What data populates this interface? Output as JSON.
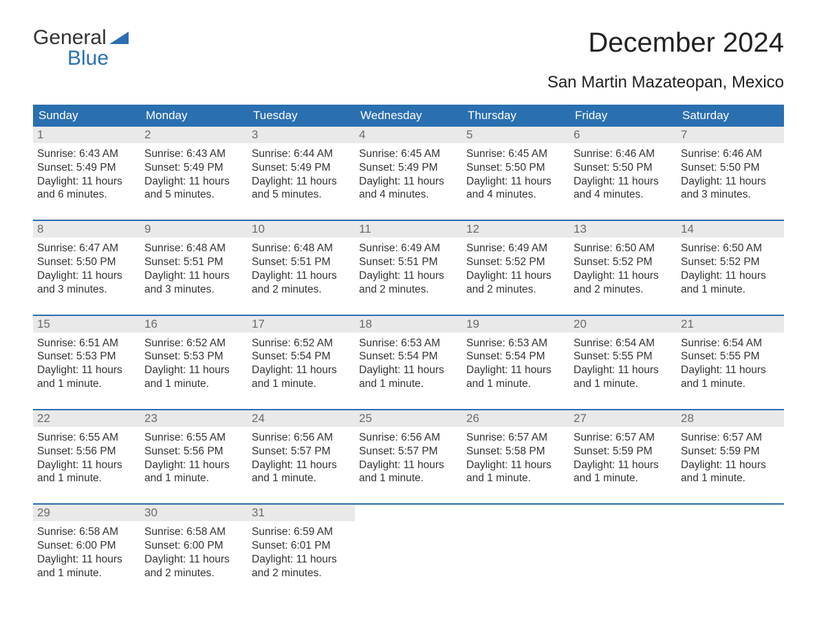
{
  "logo": {
    "word1": "General",
    "word2": "Blue",
    "triangle_color": "#2a6fb0"
  },
  "title": "December 2024",
  "location": "San Martin Mazateopan, Mexico",
  "colors": {
    "header_bg": "#2a6fb0",
    "header_text": "#ffffff",
    "daynum_bg": "#e9e9e9",
    "daynum_text": "#6a6a6a",
    "body_text": "#333333",
    "week_divider": "#2a6fb0",
    "page_bg": "#ffffff"
  },
  "typography": {
    "title_fontsize": 40,
    "location_fontsize": 24,
    "dayheader_fontsize": 17,
    "daynum_fontsize": 17,
    "body_fontsize": 15.5,
    "logo_fontsize": 30
  },
  "day_headers": [
    "Sunday",
    "Monday",
    "Tuesday",
    "Wednesday",
    "Thursday",
    "Friday",
    "Saturday"
  ],
  "weeks": [
    [
      {
        "n": "1",
        "sunrise": "Sunrise: 6:43 AM",
        "sunset": "Sunset: 5:49 PM",
        "daylight": "Daylight: 11 hours and 6 minutes."
      },
      {
        "n": "2",
        "sunrise": "Sunrise: 6:43 AM",
        "sunset": "Sunset: 5:49 PM",
        "daylight": "Daylight: 11 hours and 5 minutes."
      },
      {
        "n": "3",
        "sunrise": "Sunrise: 6:44 AM",
        "sunset": "Sunset: 5:49 PM",
        "daylight": "Daylight: 11 hours and 5 minutes."
      },
      {
        "n": "4",
        "sunrise": "Sunrise: 6:45 AM",
        "sunset": "Sunset: 5:49 PM",
        "daylight": "Daylight: 11 hours and 4 minutes."
      },
      {
        "n": "5",
        "sunrise": "Sunrise: 6:45 AM",
        "sunset": "Sunset: 5:50 PM",
        "daylight": "Daylight: 11 hours and 4 minutes."
      },
      {
        "n": "6",
        "sunrise": "Sunrise: 6:46 AM",
        "sunset": "Sunset: 5:50 PM",
        "daylight": "Daylight: 11 hours and 4 minutes."
      },
      {
        "n": "7",
        "sunrise": "Sunrise: 6:46 AM",
        "sunset": "Sunset: 5:50 PM",
        "daylight": "Daylight: 11 hours and 3 minutes."
      }
    ],
    [
      {
        "n": "8",
        "sunrise": "Sunrise: 6:47 AM",
        "sunset": "Sunset: 5:50 PM",
        "daylight": "Daylight: 11 hours and 3 minutes."
      },
      {
        "n": "9",
        "sunrise": "Sunrise: 6:48 AM",
        "sunset": "Sunset: 5:51 PM",
        "daylight": "Daylight: 11 hours and 3 minutes."
      },
      {
        "n": "10",
        "sunrise": "Sunrise: 6:48 AM",
        "sunset": "Sunset: 5:51 PM",
        "daylight": "Daylight: 11 hours and 2 minutes."
      },
      {
        "n": "11",
        "sunrise": "Sunrise: 6:49 AM",
        "sunset": "Sunset: 5:51 PM",
        "daylight": "Daylight: 11 hours and 2 minutes."
      },
      {
        "n": "12",
        "sunrise": "Sunrise: 6:49 AM",
        "sunset": "Sunset: 5:52 PM",
        "daylight": "Daylight: 11 hours and 2 minutes."
      },
      {
        "n": "13",
        "sunrise": "Sunrise: 6:50 AM",
        "sunset": "Sunset: 5:52 PM",
        "daylight": "Daylight: 11 hours and 2 minutes."
      },
      {
        "n": "14",
        "sunrise": "Sunrise: 6:50 AM",
        "sunset": "Sunset: 5:52 PM",
        "daylight": "Daylight: 11 hours and 1 minute."
      }
    ],
    [
      {
        "n": "15",
        "sunrise": "Sunrise: 6:51 AM",
        "sunset": "Sunset: 5:53 PM",
        "daylight": "Daylight: 11 hours and 1 minute."
      },
      {
        "n": "16",
        "sunrise": "Sunrise: 6:52 AM",
        "sunset": "Sunset: 5:53 PM",
        "daylight": "Daylight: 11 hours and 1 minute."
      },
      {
        "n": "17",
        "sunrise": "Sunrise: 6:52 AM",
        "sunset": "Sunset: 5:54 PM",
        "daylight": "Daylight: 11 hours and 1 minute."
      },
      {
        "n": "18",
        "sunrise": "Sunrise: 6:53 AM",
        "sunset": "Sunset: 5:54 PM",
        "daylight": "Daylight: 11 hours and 1 minute."
      },
      {
        "n": "19",
        "sunrise": "Sunrise: 6:53 AM",
        "sunset": "Sunset: 5:54 PM",
        "daylight": "Daylight: 11 hours and 1 minute."
      },
      {
        "n": "20",
        "sunrise": "Sunrise: 6:54 AM",
        "sunset": "Sunset: 5:55 PM",
        "daylight": "Daylight: 11 hours and 1 minute."
      },
      {
        "n": "21",
        "sunrise": "Sunrise: 6:54 AM",
        "sunset": "Sunset: 5:55 PM",
        "daylight": "Daylight: 11 hours and 1 minute."
      }
    ],
    [
      {
        "n": "22",
        "sunrise": "Sunrise: 6:55 AM",
        "sunset": "Sunset: 5:56 PM",
        "daylight": "Daylight: 11 hours and 1 minute."
      },
      {
        "n": "23",
        "sunrise": "Sunrise: 6:55 AM",
        "sunset": "Sunset: 5:56 PM",
        "daylight": "Daylight: 11 hours and 1 minute."
      },
      {
        "n": "24",
        "sunrise": "Sunrise: 6:56 AM",
        "sunset": "Sunset: 5:57 PM",
        "daylight": "Daylight: 11 hours and 1 minute."
      },
      {
        "n": "25",
        "sunrise": "Sunrise: 6:56 AM",
        "sunset": "Sunset: 5:57 PM",
        "daylight": "Daylight: 11 hours and 1 minute."
      },
      {
        "n": "26",
        "sunrise": "Sunrise: 6:57 AM",
        "sunset": "Sunset: 5:58 PM",
        "daylight": "Daylight: 11 hours and 1 minute."
      },
      {
        "n": "27",
        "sunrise": "Sunrise: 6:57 AM",
        "sunset": "Sunset: 5:59 PM",
        "daylight": "Daylight: 11 hours and 1 minute."
      },
      {
        "n": "28",
        "sunrise": "Sunrise: 6:57 AM",
        "sunset": "Sunset: 5:59 PM",
        "daylight": "Daylight: 11 hours and 1 minute."
      }
    ],
    [
      {
        "n": "29",
        "sunrise": "Sunrise: 6:58 AM",
        "sunset": "Sunset: 6:00 PM",
        "daylight": "Daylight: 11 hours and 1 minute."
      },
      {
        "n": "30",
        "sunrise": "Sunrise: 6:58 AM",
        "sunset": "Sunset: 6:00 PM",
        "daylight": "Daylight: 11 hours and 2 minutes."
      },
      {
        "n": "31",
        "sunrise": "Sunrise: 6:59 AM",
        "sunset": "Sunset: 6:01 PM",
        "daylight": "Daylight: 11 hours and 2 minutes."
      },
      null,
      null,
      null,
      null
    ]
  ]
}
